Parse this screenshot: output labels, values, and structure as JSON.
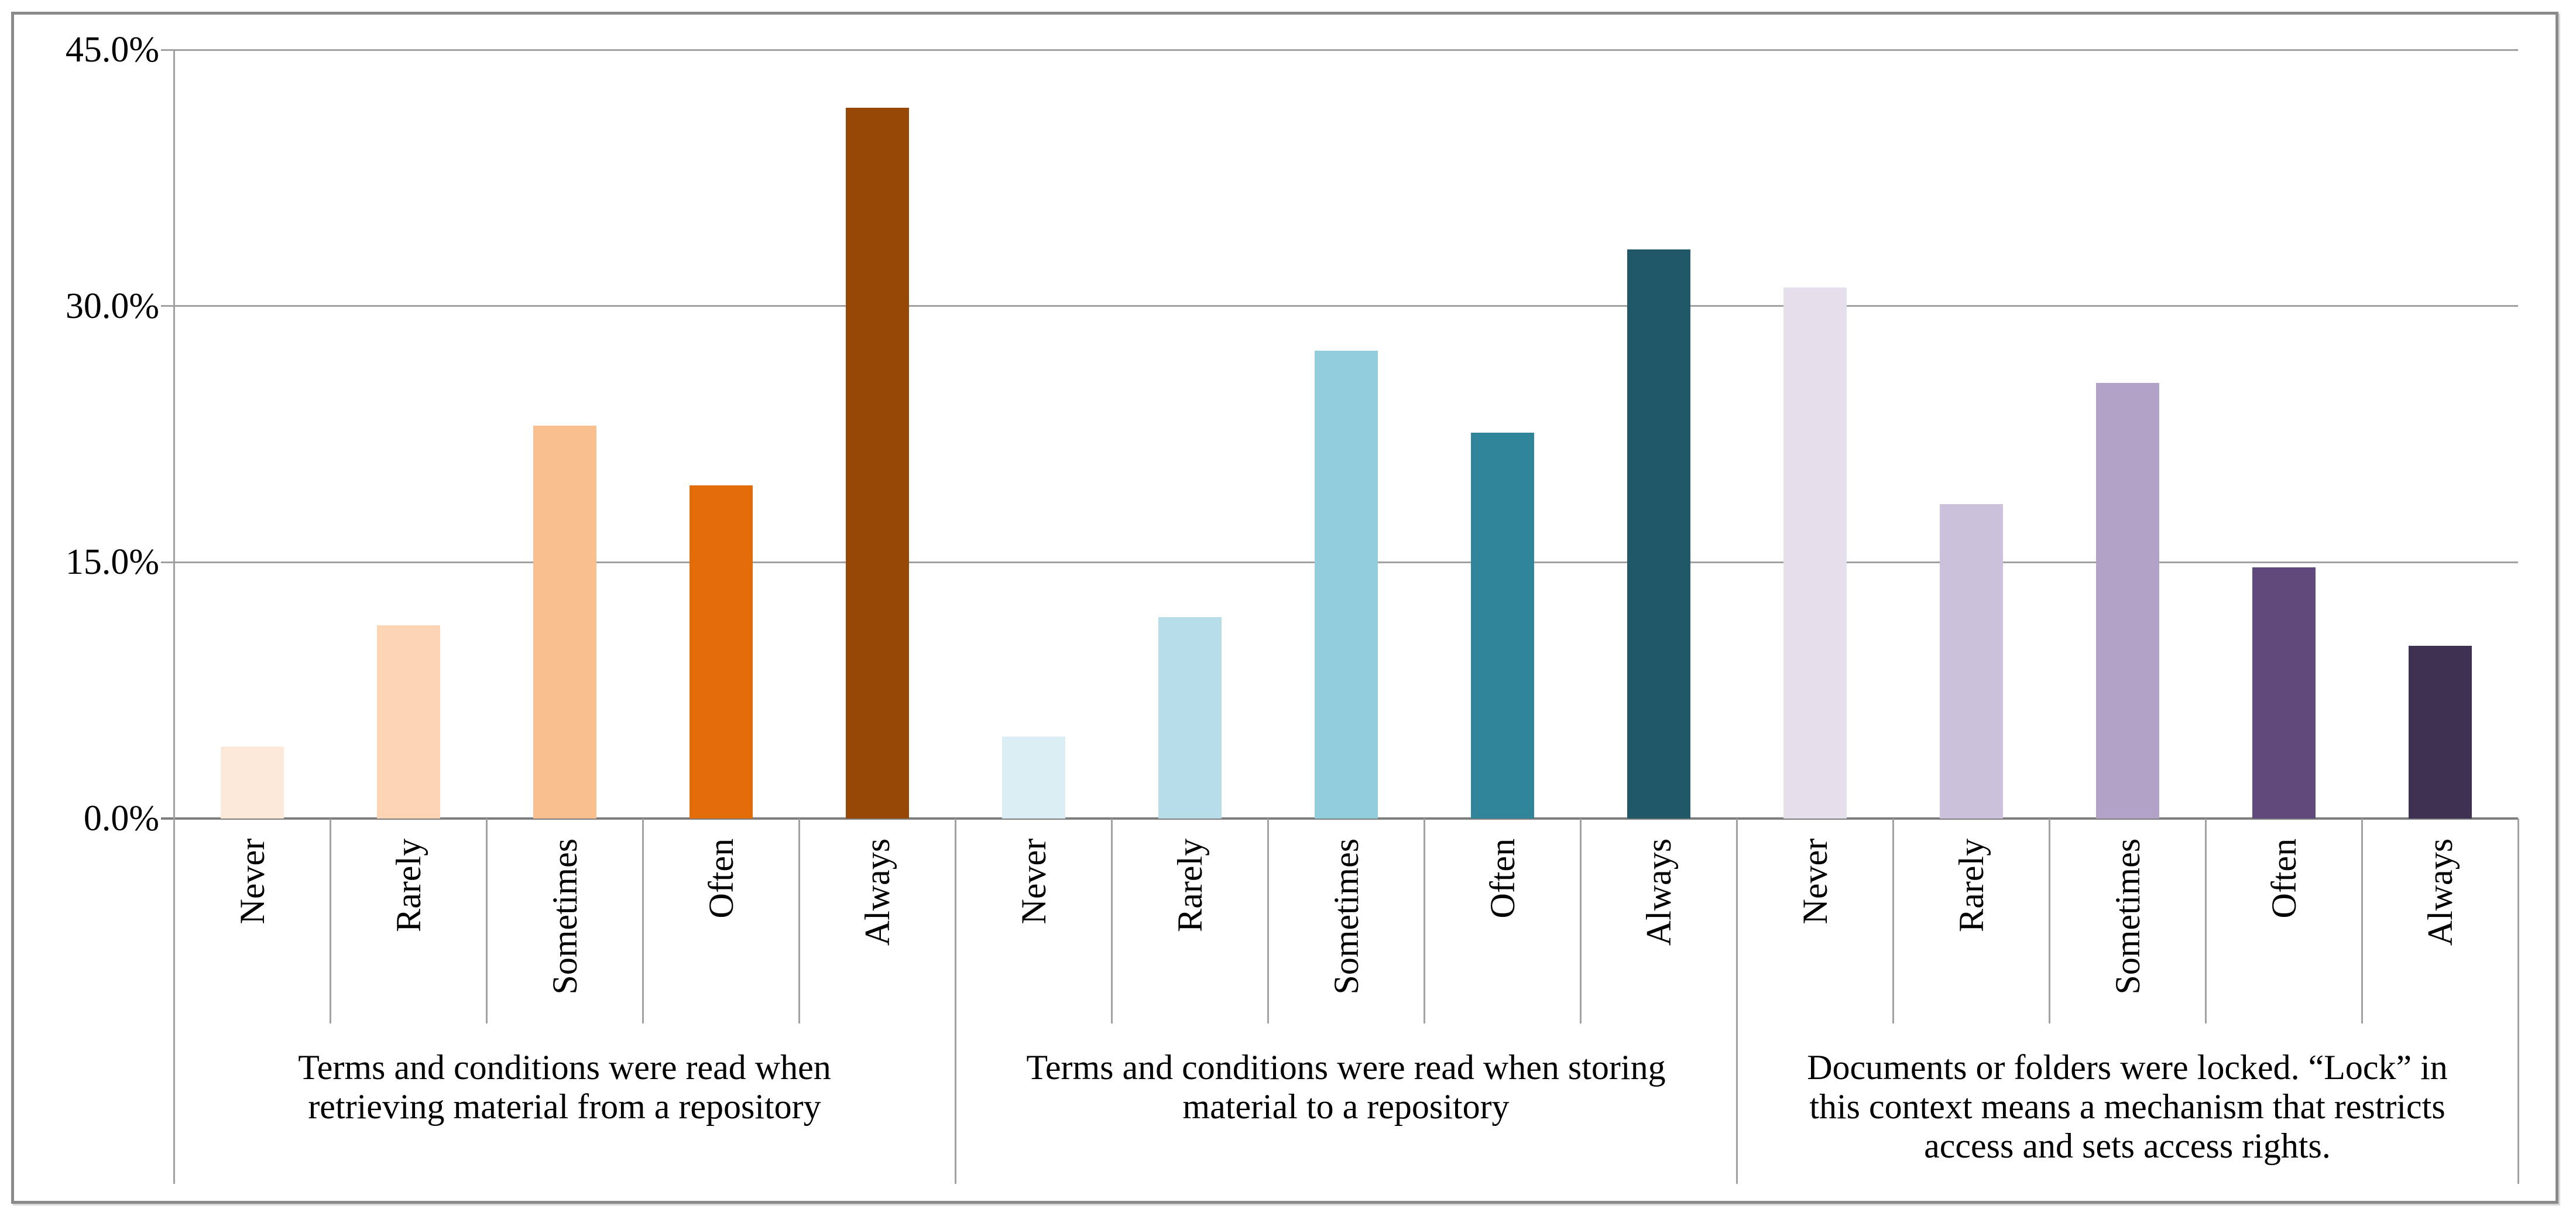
{
  "chart_data": {
    "type": "bar",
    "title": "",
    "xlabel": "",
    "ylabel": "",
    "ylim": [
      0,
      45
    ],
    "grid": true,
    "legend_position": "none",
    "ytick_labels": [
      "45.0%",
      "30.0%",
      "15.0%",
      "0.0%"
    ],
    "ytick_values": [
      45,
      30,
      15,
      0
    ],
    "categories": [
      "Never",
      "Rarely",
      "Sometimes",
      "Often",
      "Always"
    ],
    "groups": [
      {
        "label": "Terms and conditions were read when\nretrieving material from a repository",
        "values": [
          4.2,
          11.3,
          23.0,
          19.5,
          41.6
        ],
        "colors": [
          "#FDE9D9",
          "#FCD5B4",
          "#FABF8F",
          "#E36C0A",
          "#974706"
        ]
      },
      {
        "label": "Terms and conditions were read when storing\nmaterial to a repository",
        "values": [
          4.8,
          11.8,
          27.4,
          22.6,
          33.3
        ],
        "colors": [
          "#DBEEF3",
          "#B7DDE8",
          "#92CDDC",
          "#31859B",
          "#205867"
        ]
      },
      {
        "label": "Documents or folders were locked. “Lock” in\nthis context means a mechanism that restricts\naccess and sets access rights.",
        "values": [
          31.1,
          18.4,
          25.5,
          14.7,
          10.1
        ],
        "colors": [
          "#E5DFEC",
          "#CCC1DA",
          "#B2A2C7",
          "#604A7B",
          "#3F3151"
        ]
      }
    ]
  },
  "styles": {
    "grid_color": "#a1a1a1",
    "axis_color": "#7d7d7d",
    "frame_color": "#8a8a8a",
    "text_color": "#000000",
    "background": "#ffffff"
  }
}
